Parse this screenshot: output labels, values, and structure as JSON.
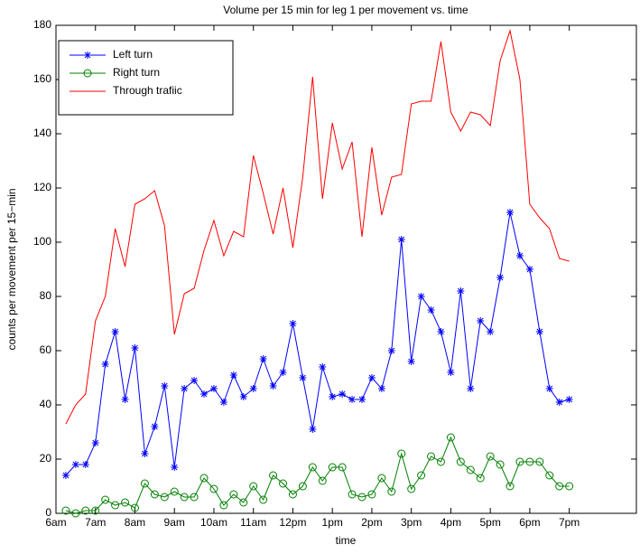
{
  "chart_data": {
    "type": "line",
    "title": "Volume per 15 min for leg 1 per movement vs. time",
    "x_label": "time",
    "y_label": "counts per movement per 15−min",
    "x": [
      6.25,
      6.5,
      6.75,
      7,
      7.25,
      7.5,
      7.75,
      8,
      8.25,
      8.5,
      8.75,
      9,
      9.25,
      9.5,
      9.75,
      10,
      10.25,
      10.5,
      10.75,
      11,
      11.25,
      11.5,
      11.75,
      12,
      12.25,
      12.5,
      12.75,
      13,
      13.25,
      13.5,
      13.75,
      14,
      14.25,
      14.5,
      14.75,
      15,
      15.25,
      15.5,
      15.75,
      16,
      16.25,
      16.5,
      16.75,
      17,
      17.25,
      17.5,
      17.75,
      18,
      18.25,
      18.5,
      18.75,
      19
    ],
    "series": [
      {
        "name": "Left turn",
        "color": "#0000ff",
        "marker": "asterisk",
        "values": [
          14,
          18,
          18,
          26,
          55,
          67,
          42,
          61,
          22,
          32,
          47,
          17,
          46,
          49,
          44,
          46,
          41,
          51,
          43,
          46,
          57,
          47,
          52,
          70,
          50,
          31,
          54,
          43,
          44,
          42,
          42,
          50,
          46,
          60,
          101,
          56,
          80,
          75,
          67,
          52,
          82,
          46,
          71,
          67,
          87,
          111,
          95,
          90,
          67,
          46,
          41,
          42
        ]
      },
      {
        "name": "Right turn",
        "color": "#008000",
        "marker": "circle",
        "values": [
          1,
          0,
          1,
          1,
          5,
          3,
          4,
          2,
          11,
          7,
          6,
          8,
          6,
          6,
          13,
          9,
          3,
          7,
          4,
          10,
          5,
          14,
          11,
          7,
          10,
          17,
          12,
          17,
          17,
          7,
          6,
          7,
          13,
          8,
          22,
          9,
          14,
          21,
          19,
          28,
          19,
          16,
          13,
          21,
          18,
          10,
          19,
          19,
          19,
          14,
          10,
          10
        ]
      },
      {
        "name": "Through trafiic",
        "color": "#ff0000",
        "marker": "none",
        "values": [
          33,
          40,
          44,
          71,
          80,
          105,
          91,
          114,
          116,
          119,
          106,
          66,
          81,
          83,
          97,
          108,
          95,
          104,
          102,
          132,
          118,
          103,
          120,
          98,
          124,
          161,
          116,
          144,
          127,
          137,
          102,
          135,
          110,
          124,
          125,
          151,
          152,
          152,
          174,
          148,
          141,
          148,
          147,
          143,
          167,
          178,
          160,
          114,
          109,
          105,
          94,
          93
        ]
      }
    ],
    "xlim": [
      6,
      20.7
    ],
    "xticks": [
      {
        "value": 6,
        "label": "6am"
      },
      {
        "value": 7,
        "label": "7am"
      },
      {
        "value": 8,
        "label": "8am"
      },
      {
        "value": 9,
        "label": "9am"
      },
      {
        "value": 10,
        "label": "10am"
      },
      {
        "value": 11,
        "label": "11am"
      },
      {
        "value": 12,
        "label": "12pm"
      },
      {
        "value": 13,
        "label": "1pm"
      },
      {
        "value": 14,
        "label": "2pm"
      },
      {
        "value": 15,
        "label": "3pm"
      },
      {
        "value": 16,
        "label": "4pm"
      },
      {
        "value": 17,
        "label": "5pm"
      },
      {
        "value": 18,
        "label": "6pm"
      },
      {
        "value": 19,
        "label": "7pm"
      }
    ],
    "ylim": [
      0,
      180
    ],
    "yticks": [
      0,
      20,
      40,
      60,
      80,
      100,
      120,
      140,
      160,
      180
    ],
    "grid": false,
    "legend": "upper-left"
  }
}
